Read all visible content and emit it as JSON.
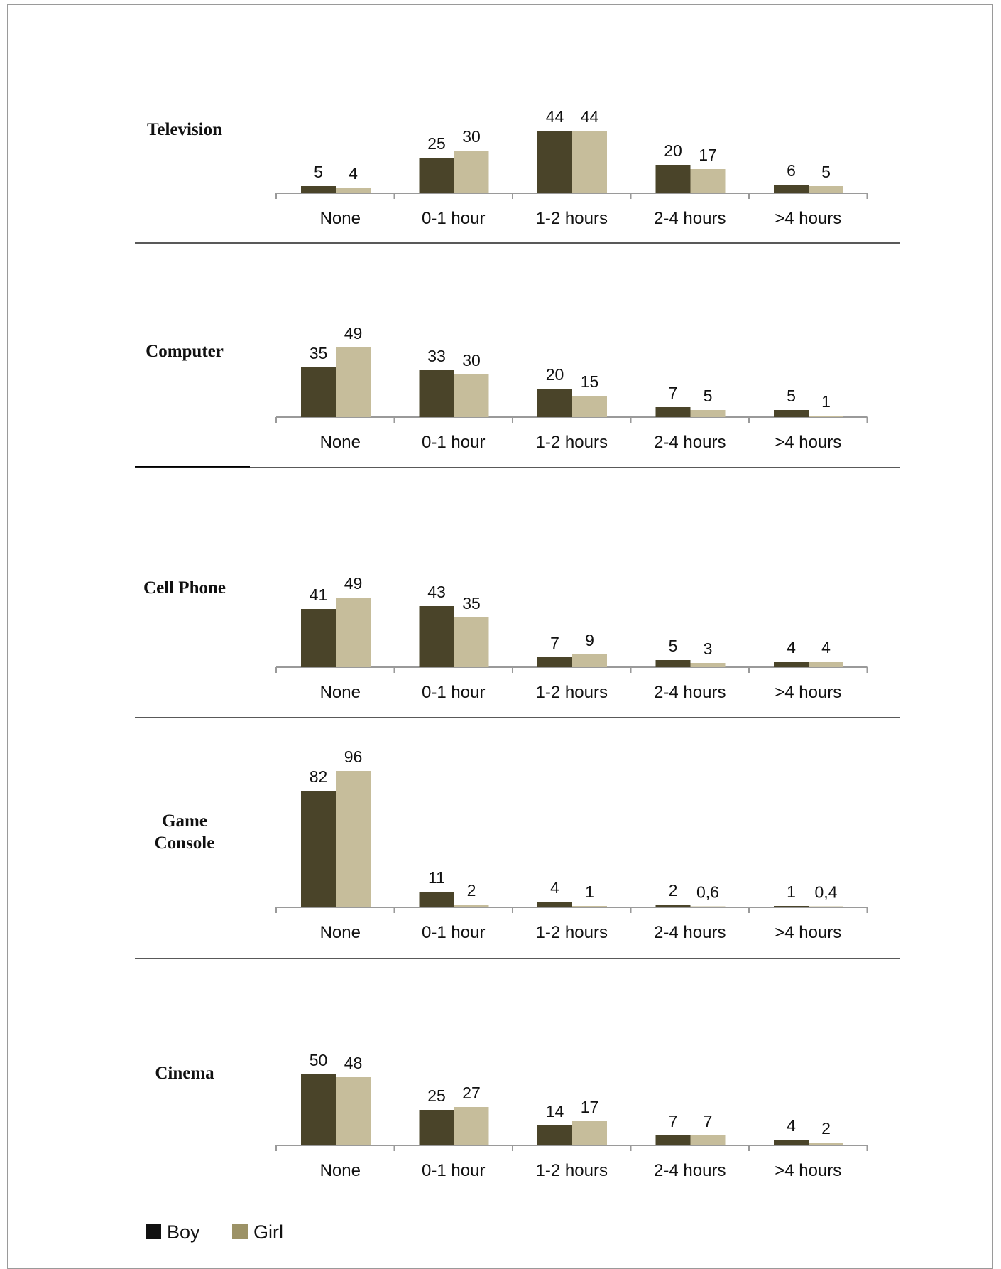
{
  "colors": {
    "boy": "#4a4429",
    "girl": "#c6bd9b",
    "axis": "#9a9a9a",
    "separator": "#222222"
  },
  "legend": {
    "items": [
      {
        "name": "Boy",
        "swatch": "#111111"
      },
      {
        "name": "Girl",
        "swatch": "#9c9266"
      }
    ]
  },
  "chart_data": [
    {
      "type": "bar",
      "title": "Television",
      "categories": [
        "None",
        "0-1 hour",
        "1-2 hours",
        "2-4 hours",
        ">4 hours"
      ],
      "series": [
        {
          "name": "Boy",
          "values": [
            5,
            25,
            44,
            20,
            6
          ],
          "labels": [
            "5",
            "25",
            "44",
            "20",
            "6"
          ]
        },
        {
          "name": "Girl",
          "values": [
            4,
            30,
            44,
            17,
            5
          ],
          "labels": [
            "4",
            "30",
            "44",
            "17",
            "5"
          ]
        }
      ]
    },
    {
      "type": "bar",
      "title": "Computer",
      "categories": [
        "None",
        "0-1 hour",
        "1-2 hours",
        "2-4 hours",
        ">4 hours"
      ],
      "series": [
        {
          "name": "Boy",
          "values": [
            35,
            33,
            20,
            7,
            5
          ],
          "labels": [
            "35",
            "33",
            "20",
            "7",
            "5"
          ]
        },
        {
          "name": "Girl",
          "values": [
            49,
            30,
            15,
            5,
            1
          ],
          "labels": [
            "49",
            "30",
            "15",
            "5",
            "1"
          ]
        }
      ]
    },
    {
      "type": "bar",
      "title": "Cell Phone",
      "categories": [
        "None",
        "0-1 hour",
        "1-2 hours",
        "2-4 hours",
        ">4 hours"
      ],
      "series": [
        {
          "name": "Boy",
          "values": [
            41,
            43,
            7,
            5,
            4
          ],
          "labels": [
            "41",
            "43",
            "7",
            "5",
            "4"
          ]
        },
        {
          "name": "Girl",
          "values": [
            49,
            35,
            9,
            3,
            4
          ],
          "labels": [
            "49",
            "35",
            "9",
            "3",
            "4"
          ]
        }
      ]
    },
    {
      "type": "bar",
      "title": "Game Console",
      "categories": [
        "None",
        "0-1 hour",
        "1-2 hours",
        "2-4 hours",
        ">4 hours"
      ],
      "series": [
        {
          "name": "Boy",
          "values": [
            82,
            11,
            4,
            2,
            1
          ],
          "labels": [
            "82",
            "11",
            "4",
            "2",
            "1"
          ]
        },
        {
          "name": "Girl",
          "values": [
            96,
            2,
            1,
            0.6,
            0.4
          ],
          "labels": [
            "96",
            "2",
            "1",
            "0,6",
            "0,4"
          ]
        }
      ]
    },
    {
      "type": "bar",
      "title": "Cinema",
      "categories": [
        "None",
        "0-1 hour",
        "1-2 hours",
        "2-4 hours",
        ">4 hours"
      ],
      "series": [
        {
          "name": "Boy",
          "values": [
            50,
            25,
            14,
            7,
            4
          ],
          "labels": [
            "50",
            "25",
            "14",
            "7",
            "4"
          ]
        },
        {
          "name": "Girl",
          "values": [
            48,
            27,
            17,
            7,
            2
          ],
          "labels": [
            "48",
            "27",
            "17",
            "7",
            "2"
          ]
        }
      ]
    }
  ]
}
